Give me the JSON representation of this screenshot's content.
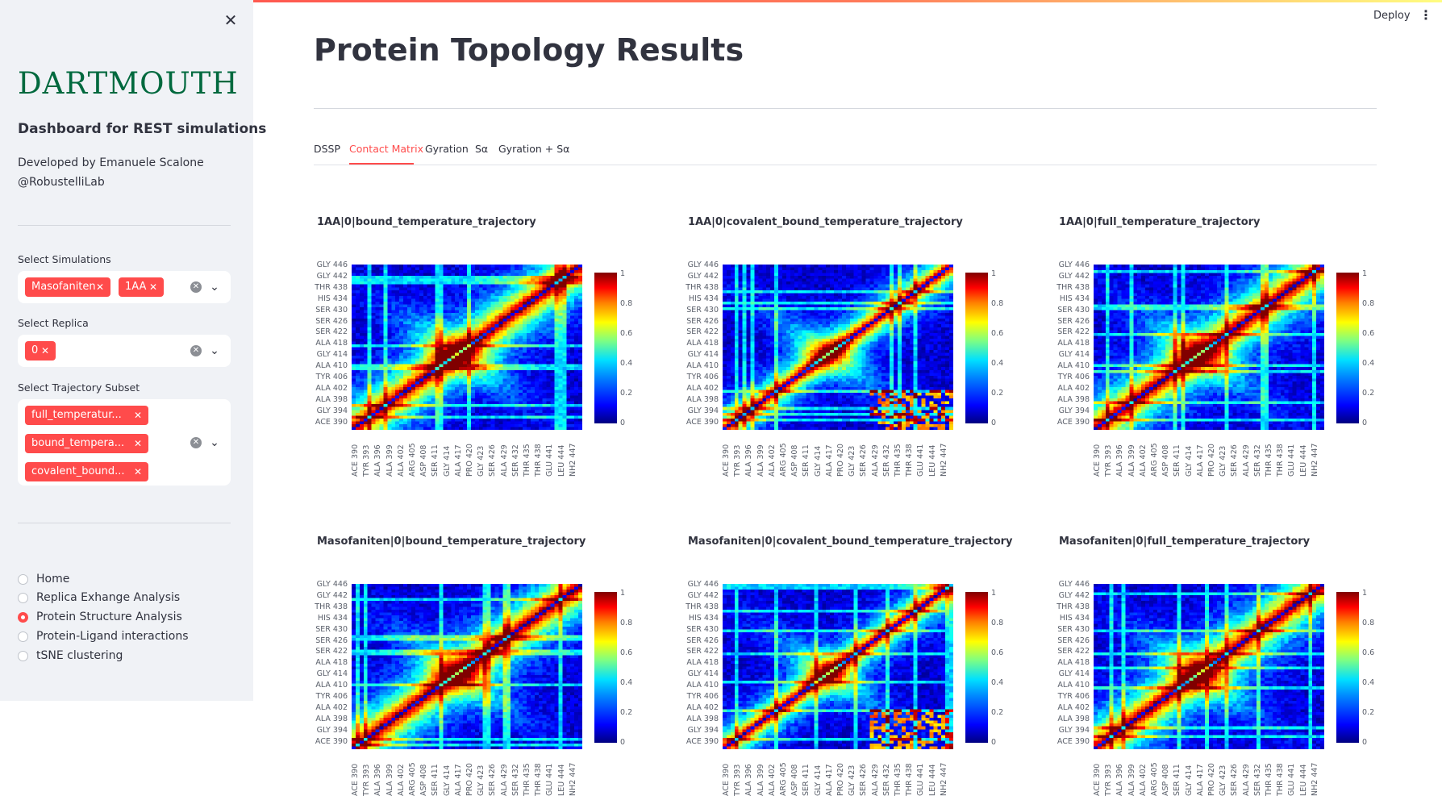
{
  "sidebar": {
    "close_icon": "close-icon",
    "logo_text": "DARTMOUTH",
    "title": "Dashboard for REST simulations",
    "developer_line": "Developed by Emanuele Scalone",
    "lab_line": "@RobustelliLab",
    "simulations": {
      "label": "Select Simulations",
      "chips": [
        "Masofaniten",
        "1AA"
      ]
    },
    "replica": {
      "label": "Select Replica",
      "chips": [
        "0"
      ]
    },
    "trajectory": {
      "label": "Select Trajectory Subset",
      "chips": [
        "full_temperatur...",
        "bound_tempera...",
        "covalent_bound..."
      ]
    },
    "nav": {
      "selected": "Protein Structure Analysis",
      "items": [
        "Home",
        "Replica Exhange Analysis",
        "Protein Structure Analysis",
        "Protein-Ligand interactions",
        "tSNE clustering"
      ]
    }
  },
  "header": {
    "deploy": "Deploy",
    "menu_icon": "kebab-menu-icon"
  },
  "main": {
    "title": "Protein Topology Results",
    "tabs": [
      "DSSP",
      "Contact Matrix",
      "Gyration",
      "Sα",
      "Gyration + Sα"
    ],
    "active_tab": "Contact Matrix",
    "plots": [
      {
        "title": "1AA|0|bound_temperature_trajectory"
      },
      {
        "title": "1AA|0|covalent_bound_temperature_trajectory"
      },
      {
        "title": "1AA|0|full_temperature_trajectory"
      },
      {
        "title": "Masofaniten|0|bound_temperature_trajectory"
      },
      {
        "title": "Masofaniten|0|covalent_bound_temperature_trajectory"
      },
      {
        "title": "Masofaniten|0|full_temperature_trajectory"
      }
    ]
  },
  "chart_data": {
    "type": "heatmap",
    "colormap": "jet",
    "y_tick_labels": [
      "GLY 446",
      "GLY 442",
      "THR 438",
      "HIS 434",
      "SER 430",
      "SER 426",
      "SER 422",
      "ALA 418",
      "GLY 414",
      "ALA 410",
      "TYR 406",
      "ALA 402",
      "ALA 398",
      "GLY 394",
      "ACE 390"
    ],
    "x_tick_labels": [
      "ACE 390",
      "TYR 393",
      "ALA 396",
      "ALA 399",
      "ALA 402",
      "ARG 405",
      "ASP 408",
      "SER 411",
      "GLY 414",
      "ALA 417",
      "PRO 420",
      "GLY 423",
      "SER 426",
      "ALA 429",
      "SER 432",
      "THR 435",
      "THR 438",
      "GLU 441",
      "LEU 444",
      "NH2 447"
    ],
    "colorbar_ticks": [
      "1",
      "0.8",
      "0.6",
      "0.4",
      "0.2",
      "0"
    ],
    "value_range": [
      0,
      1
    ]
  }
}
